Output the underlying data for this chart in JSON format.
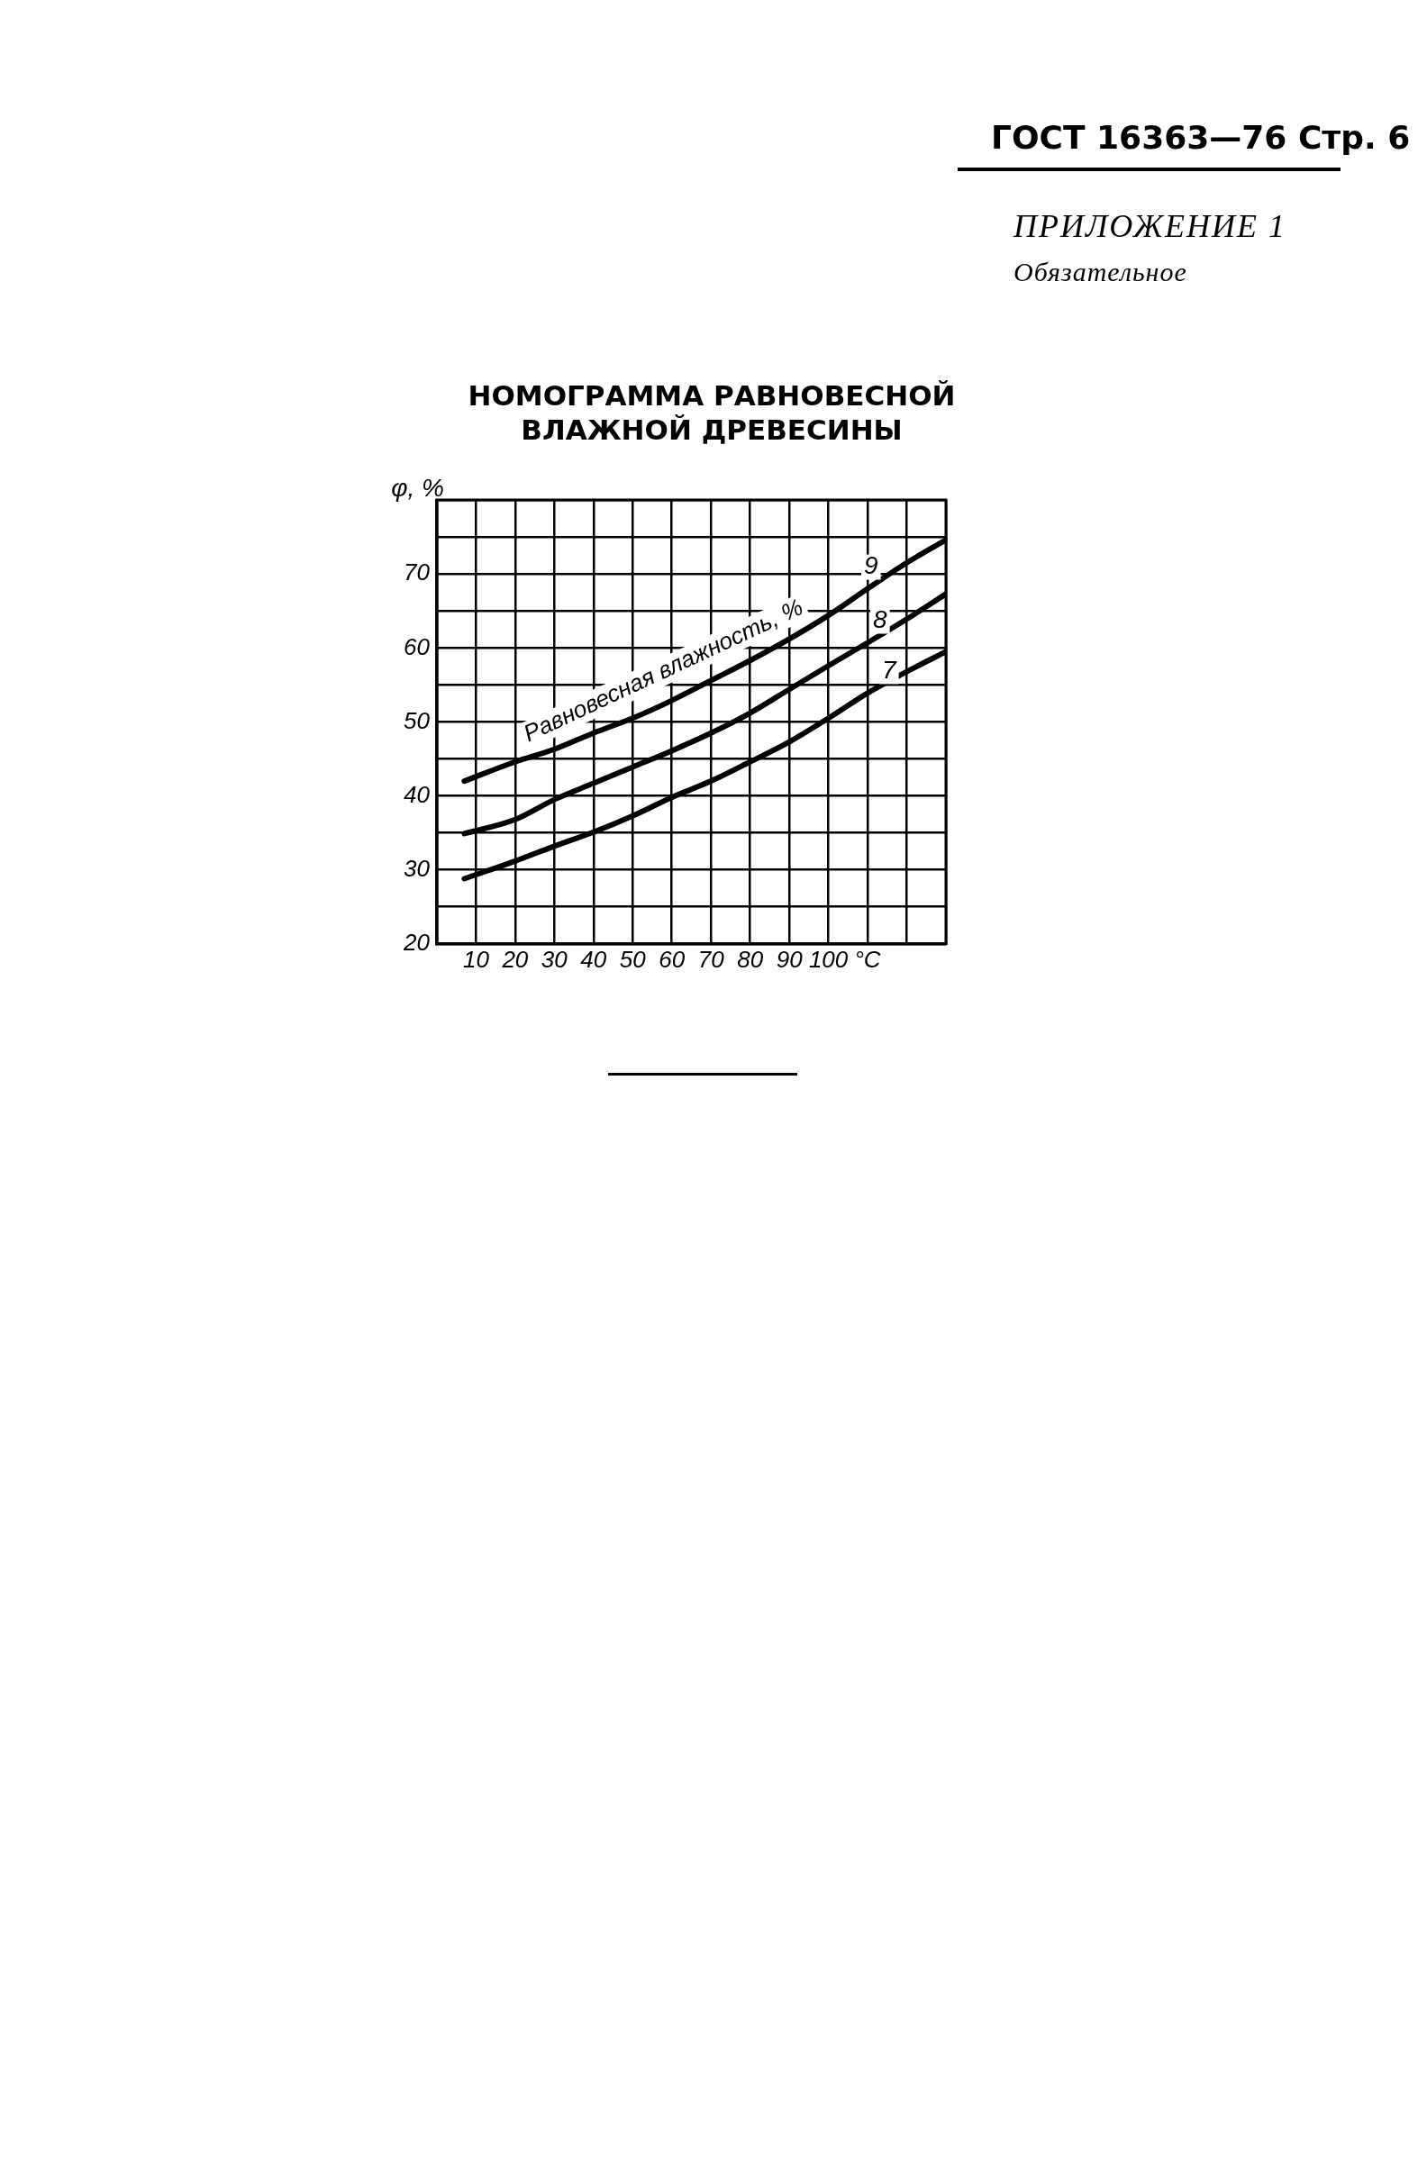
{
  "chart_data": {
    "type": "line",
    "title": "НОМОГРАММА РАВНОВЕСНОЙ ВЛАЖНОЙ ДРЕВЕСИНЫ",
    "ylabel": "φ, %",
    "annotations": [
      "ГОСТ 16363—76 Стр. 6",
      "ПРИЛОЖЕНИЕ 1",
      "Обязательное",
      "Равновесная влажность, %"
    ],
    "x": [
      7,
      20,
      30,
      40,
      50,
      60,
      70,
      80,
      90,
      100,
      110,
      120,
      130
    ],
    "series": [
      {
        "name": "9",
        "color": "#000000",
        "values": [
          42,
          44.6,
          46.3,
          48.5,
          50.5,
          52.9,
          55.6,
          58.3,
          61.2,
          64.4,
          68,
          71.5,
          74.6
        ]
      },
      {
        "name": "8",
        "color": "#000000",
        "values": [
          34.9,
          36.8,
          39.5,
          41.7,
          43.9,
          46.1,
          48.5,
          51.2,
          54.4,
          57.6,
          60.7,
          63.9,
          67.3
        ]
      },
      {
        "name": "7",
        "color": "#000000",
        "values": [
          28.8,
          31.2,
          33.2,
          35.1,
          37.3,
          39.8,
          42,
          44.6,
          47.3,
          50.5,
          53.9,
          56.8,
          59.5
        ]
      }
    ],
    "xlim": [
      0,
      130
    ],
    "xticks": [
      {
        "value": 0,
        "label": null
      },
      10,
      20,
      30,
      40,
      50,
      60,
      70,
      80,
      90,
      100,
      {
        "value": 110,
        "label": "°C"
      },
      {
        "value": 120,
        "label": null
      },
      {
        "value": 130,
        "label": null
      }
    ],
    "ylim": [
      20,
      80
    ],
    "yticks": [
      20,
      {
        "value": 25,
        "label": null
      },
      30,
      {
        "value": 35,
        "label": null
      },
      40,
      {
        "value": 45,
        "label": null
      },
      50,
      {
        "value": 55,
        "label": null
      },
      60,
      {
        "value": 65,
        "label": null
      },
      70,
      {
        "value": 75,
        "label": null
      },
      {
        "value": 80,
        "label": null
      }
    ],
    "grid": true,
    "legend": false,
    "marker": "none",
    "line_style": "solid"
  }
}
